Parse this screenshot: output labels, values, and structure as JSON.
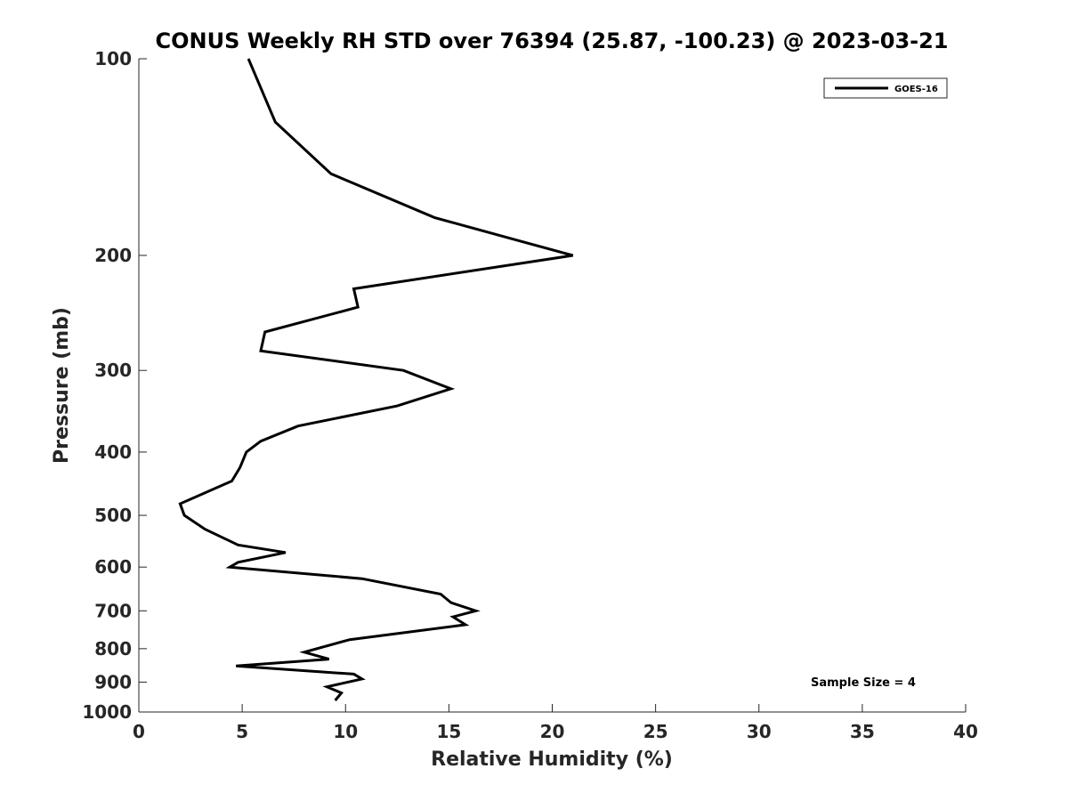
{
  "chart_data": {
    "type": "line",
    "title": "CONUS Weekly RH STD over 76394 (25.87, -100.23) @ 2023-03-21",
    "xlabel": "Relative Humidity (%)",
    "ylabel": "Pressure (mb)",
    "xlim": [
      0,
      40
    ],
    "ylim": [
      100,
      1000
    ],
    "yscale": "log",
    "y_reversed": true,
    "grid": false,
    "legend_position": "top-right",
    "x_ticks": [
      0,
      5,
      10,
      15,
      20,
      25,
      30,
      35,
      40
    ],
    "y_ticks": [
      100,
      200,
      300,
      400,
      500,
      600,
      700,
      800,
      900,
      1000
    ],
    "annotation": "Sample Size = 4",
    "series": [
      {
        "name": "GOES-16",
        "color": "#000000",
        "x": [
          5.3,
          6.6,
          9.3,
          14.3,
          18.4,
          21.0,
          10.4,
          10.6,
          6.1,
          5.9,
          12.8,
          15.1,
          12.5,
          7.7,
          5.9,
          5.2,
          4.9,
          4.5,
          2.0,
          2.2,
          3.2,
          4.8,
          7.1,
          4.8,
          4.4,
          10.8,
          14.6,
          15.1,
          16.3,
          15.2,
          15.8,
          10.2,
          8.0,
          9.2,
          4.7,
          10.4,
          10.8,
          9.1,
          9.8,
          9.5
        ],
        "y": [
          100,
          125,
          150,
          175,
          190,
          200,
          225,
          240,
          262,
          280,
          300,
          320,
          340,
          365,
          385,
          400,
          422,
          443,
          480,
          500,
          525,
          555,
          570,
          590,
          600,
          625,
          660,
          680,
          700,
          715,
          735,
          775,
          810,
          830,
          850,
          875,
          890,
          915,
          935,
          960
        ]
      }
    ]
  }
}
